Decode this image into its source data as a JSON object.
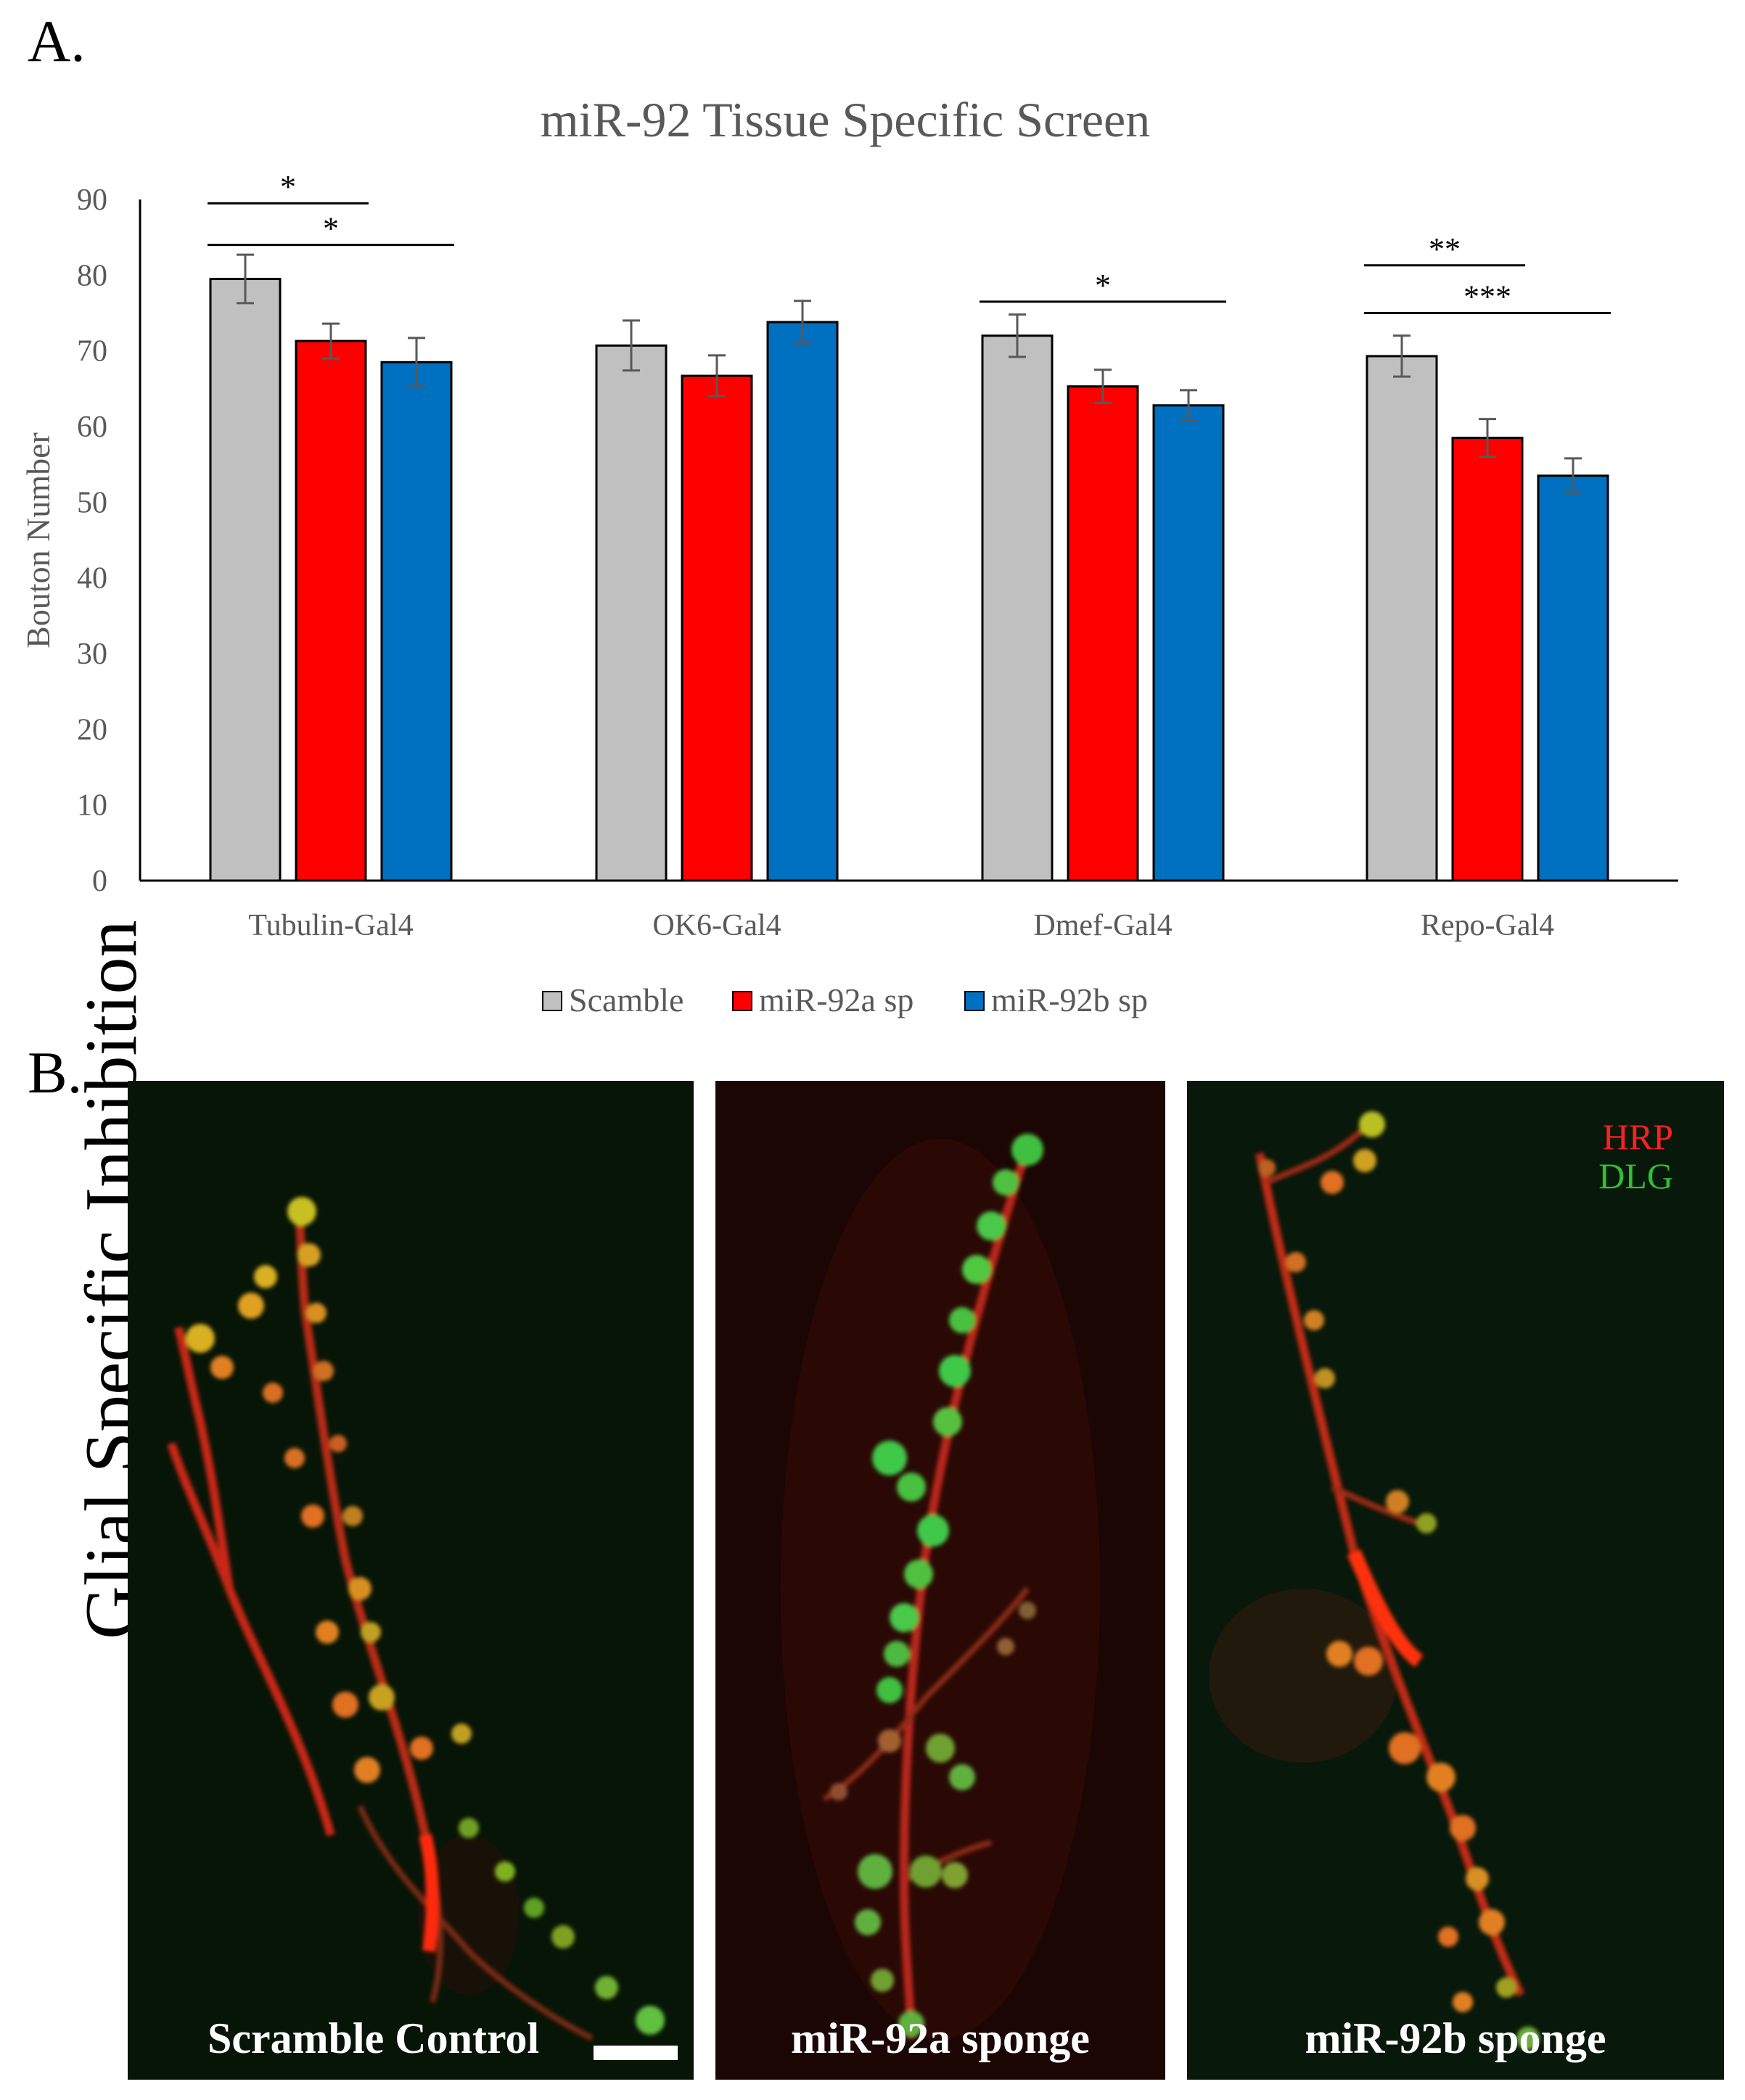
{
  "panel_a_label": "A.",
  "panel_b_label": "B.",
  "chart_data": {
    "type": "bar",
    "title": "miR-92 Tissue Specific Screen",
    "ylabel": "Bouton Number",
    "xlabel": "",
    "ylim": [
      0,
      90
    ],
    "yticks": [
      0,
      10,
      20,
      30,
      40,
      50,
      60,
      70,
      80,
      90
    ],
    "categories": [
      "Tubulin-Gal4",
      "OK6-Gal4",
      "Dmef-Gal4",
      "Repo-Gal4"
    ],
    "series": [
      {
        "name": "Scamble",
        "color": "#c0c0c0",
        "values": [
          79.5,
          70.7,
          72,
          69.3
        ],
        "errors": [
          3.2,
          3.3,
          2.8,
          2.7
        ]
      },
      {
        "name": "miR-92a sp",
        "color": "#ff0000",
        "values": [
          71.3,
          66.7,
          65.3,
          58.5
        ],
        "errors": [
          2.3,
          2.7,
          2.2,
          2.5
        ]
      },
      {
        "name": "miR-92b sp",
        "color": "#0070c0",
        "values": [
          68.5,
          73.8,
          62.8,
          53.5
        ],
        "errors": [
          3.2,
          2.8,
          2.0,
          2.3
        ]
      }
    ],
    "legend_position": "bottom",
    "grid": false,
    "significance": [
      {
        "category": 0,
        "from": 0,
        "to": 1,
        "y": 89.5,
        "label": "*"
      },
      {
        "category": 0,
        "from": 0,
        "to": 2,
        "y": 84,
        "label": "*"
      },
      {
        "category": 2,
        "from": 0,
        "to": 2,
        "y": 76.5,
        "label": "*"
      },
      {
        "category": 3,
        "from": 0,
        "to": 1,
        "y": 81.3,
        "label": "**"
      },
      {
        "category": 3,
        "from": 0,
        "to": 2,
        "y": 75,
        "label": "***"
      }
    ]
  },
  "micrographs": {
    "side_label": "Glial Specific Inhibition",
    "stain_red": "HRP",
    "stain_green": "DLG",
    "panels": [
      {
        "caption": "Scramble Control"
      },
      {
        "caption": "miR-92a sponge"
      },
      {
        "caption": "miR-92b sponge"
      }
    ]
  }
}
